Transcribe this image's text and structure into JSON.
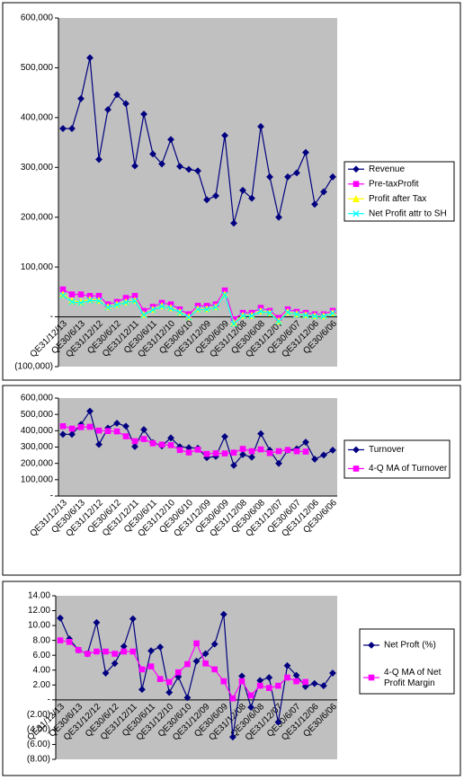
{
  "chart_data": [
    {
      "type": "line",
      "categories": [
        "QE31/12/13",
        null,
        "QE30/6/13",
        null,
        "QE31/12/12",
        null,
        "QE30/6/12",
        null,
        "QE31/12/11",
        null,
        "QE30/6/11",
        null,
        "QE31/12/10",
        null,
        "QE30/6/10",
        null,
        "QE31/12/09",
        null,
        "QE30/6/09",
        null,
        "QE31/12/08",
        null,
        "QE30/6/08",
        null,
        "QE31/12/07",
        null,
        "QE30/6/07",
        null,
        "QE31/12/06",
        null,
        "QE30/6/06"
      ],
      "series": [
        {
          "name": "Revenue",
          "color": "#000080",
          "marker": "diamond",
          "values": [
            378000,
            378000,
            438000,
            520000,
            316000,
            416000,
            446000,
            428000,
            303000,
            407000,
            327000,
            307000,
            356000,
            302000,
            296000,
            293000,
            235000,
            243000,
            364000,
            188000,
            254000,
            238000,
            382000,
            281000,
            200000,
            281000,
            289000,
            330000,
            226000,
            251000,
            281000
          ]
        },
        {
          "name": "Pre-taxProfit",
          "color": "#ff00ff",
          "marker": "square",
          "values": [
            55000,
            45000,
            45000,
            42000,
            42000,
            25000,
            30000,
            38000,
            42000,
            12000,
            20000,
            28000,
            25000,
            15000,
            5000,
            22000,
            22000,
            25000,
            53000,
            -5000,
            8000,
            8000,
            18000,
            12000,
            -2000,
            15000,
            10000,
            8000,
            5000,
            5000,
            12000
          ]
        },
        {
          "name": "Profit after Tax",
          "color": "#ffff00",
          "marker": "triangle",
          "values": [
            45000,
            32000,
            30000,
            35000,
            33000,
            20000,
            25000,
            30000,
            33000,
            5000,
            15000,
            22000,
            18000,
            10000,
            0,
            16000,
            16000,
            20000,
            45000,
            -12000,
            3000,
            3000,
            12000,
            8000,
            -8000,
            10000,
            6000,
            4000,
            2000,
            2000,
            8000
          ]
        },
        {
          "name": "Net Profit attr to SH",
          "color": "#00ffff",
          "marker": "x",
          "values": [
            43000,
            30000,
            28000,
            33000,
            32000,
            19000,
            24000,
            29000,
            32000,
            4000,
            14000,
            21000,
            17000,
            9000,
            -1000,
            15000,
            15000,
            19000,
            44000,
            -14000,
            2000,
            2000,
            11000,
            7000,
            -9000,
            9000,
            5000,
            3000,
            1000,
            1000,
            7000
          ]
        }
      ],
      "ylim": [
        -100000,
        600000
      ],
      "yticks": [
        {
          "value": -100000,
          "label": "(100,000)"
        },
        {
          "value": 0,
          "label": "-"
        },
        {
          "value": 100000,
          "label": "100,000"
        },
        {
          "value": 200000,
          "label": "200,000"
        },
        {
          "value": 300000,
          "label": "300,000"
        },
        {
          "value": 400000,
          "label": "400,000"
        },
        {
          "value": 500000,
          "label": "500,000"
        },
        {
          "value": 600000,
          "label": "600,000"
        }
      ],
      "grid": false,
      "legend": "right"
    },
    {
      "type": "line",
      "categories": [
        "QE31/12/13",
        null,
        "QE30/6/13",
        null,
        "QE31/12/12",
        null,
        "QE30/6/12",
        null,
        "QE31/12/11",
        null,
        "QE30/6/11",
        null,
        "QE31/12/10",
        null,
        "QE30/6/10",
        null,
        "QE31/12/09",
        null,
        "QE30/6/09",
        null,
        "QE31/12/08",
        null,
        "QE30/6/08",
        null,
        "QE31/12/07",
        null,
        "QE30/6/07",
        null,
        "QE31/12/06",
        null,
        "QE30/6/06"
      ],
      "series": [
        {
          "name": "Turnover",
          "color": "#000080",
          "marker": "diamond",
          "values": [
            378000,
            378000,
            438000,
            520000,
            316000,
            416000,
            446000,
            428000,
            303000,
            407000,
            327000,
            307000,
            356000,
            302000,
            296000,
            293000,
            235000,
            243000,
            364000,
            188000,
            254000,
            238000,
            382000,
            281000,
            200000,
            281000,
            289000,
            330000,
            226000,
            251000,
            281000
          ]
        },
        {
          "name": "4-Q  MA of Turnover",
          "color": "#ff00ff",
          "marker": "square",
          "values": [
            428000,
            413000,
            422000,
            424000,
            401000,
            398000,
            396000,
            366000,
            336000,
            349000,
            323000,
            315000,
            312000,
            282000,
            267000,
            284000,
            258000,
            262000,
            261000,
            266000,
            289000,
            275000,
            286000,
            263000,
            275000,
            282000,
            274000,
            272000,
            null,
            null,
            null
          ]
        }
      ],
      "ylim": [
        0,
        600000
      ],
      "yticks": [
        {
          "value": 0,
          "label": "-"
        },
        {
          "value": 100000,
          "label": "100,000"
        },
        {
          "value": 200000,
          "label": "200,000"
        },
        {
          "value": 300000,
          "label": "300,000"
        },
        {
          "value": 400000,
          "label": "400,000"
        },
        {
          "value": 500000,
          "label": "500,000"
        },
        {
          "value": 600000,
          "label": "600,000"
        }
      ],
      "grid": false,
      "legend": "right"
    },
    {
      "type": "line",
      "categories": [
        "QE31/12/13",
        null,
        "QE30/6/13",
        null,
        "QE31/12/12",
        null,
        "QE30/6/12",
        null,
        "QE31/12/11",
        null,
        "QE30/6/11",
        null,
        "QE31/12/10",
        null,
        "QE30/6/10",
        null,
        "QE31/12/09",
        null,
        "QE30/6/09",
        null,
        "QE31/12/08",
        null,
        "QE30/6/08",
        null,
        "QE31/12/07",
        null,
        "QE30/6/07",
        null,
        "QE31/12/06",
        null,
        "QE30/6/06"
      ],
      "series": [
        {
          "name": "Net Proft (%)",
          "color": "#000080",
          "marker": "diamond",
          "values": [
            11.0,
            8.2,
            6.7,
            6.2,
            10.4,
            3.6,
            4.9,
            7.2,
            10.9,
            1.4,
            6.6,
            7.1,
            1.0,
            3.1,
            0.3,
            5.2,
            6.2,
            7.5,
            11.5,
            -5.0,
            3.2,
            -1.0,
            2.6,
            3.0,
            -3.0,
            4.6,
            3.3,
            1.8,
            2.2,
            1.9,
            3.6
          ]
        },
        {
          "name": "4-Q MA of Net Profit Margin",
          "color": "#ff00ff",
          "marker": "square",
          "values": [
            8.0,
            7.8,
            6.7,
            6.2,
            6.5,
            6.5,
            6.2,
            6.5,
            6.5,
            4.1,
            4.5,
            2.8,
            2.4,
            3.7,
            4.8,
            7.6,
            4.9,
            4.1,
            2.5,
            0.2,
            2.5,
            0.6,
            1.9,
            1.6,
            1.9,
            3.0,
            2.5,
            2.4,
            null,
            null,
            null
          ]
        }
      ],
      "ylim": [
        -8,
        14
      ],
      "yticks": [
        {
          "value": -8,
          "label": "(8.00)"
        },
        {
          "value": -6,
          "label": "(6.00)"
        },
        {
          "value": -4,
          "label": "(4.00)"
        },
        {
          "value": -2,
          "label": "(2.00)"
        },
        {
          "value": 0,
          "label": "-"
        },
        {
          "value": 2,
          "label": "2.00"
        },
        {
          "value": 4,
          "label": "4.00"
        },
        {
          "value": 6,
          "label": "6.00"
        },
        {
          "value": 8,
          "label": "8.00"
        },
        {
          "value": 10,
          "label": "10.00"
        },
        {
          "value": 12,
          "label": "12.00"
        },
        {
          "value": 14,
          "label": "14.00"
        }
      ],
      "grid": false,
      "legend": "right"
    }
  ]
}
